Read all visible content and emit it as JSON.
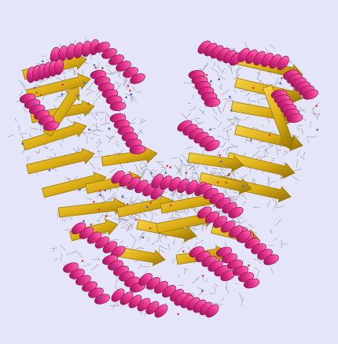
{
  "image": {
    "subject": "protein-structure-ribbon",
    "colors": {
      "background": "#e5e5f9",
      "helix": "#e6328c",
      "helix_dark": "#a0185c",
      "sheet": "#e0b31b",
      "sheet_dark": "#9a7808",
      "backbone": "#9a9a9a",
      "atom_red": "#d23c3c",
      "atom_blue": "#4a5fd0"
    }
  }
}
